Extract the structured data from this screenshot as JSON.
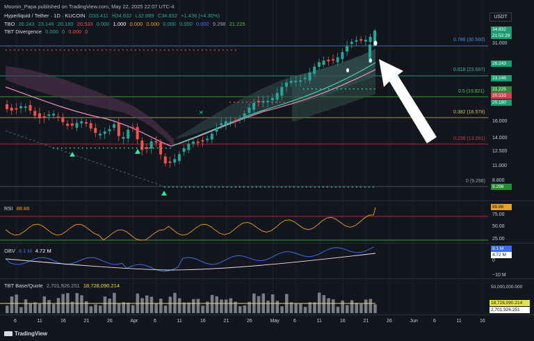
{
  "publisher": "Moonin_Papa published on TradingView.com, May 22, 2025 22:07 UTC-4",
  "symbol": {
    "name": "Hyperliquid / Tether · 1D · KUCOIN",
    "ohlc": [
      "O33.411",
      "H34.832",
      "L32.889",
      "C34.832",
      "+1.436 (+4.30%)"
    ]
  },
  "tbo": {
    "label": "TBO",
    "values": [
      "26.243",
      "23.146",
      "20.180",
      "20.533",
      "0.000",
      "1.000",
      "0.000",
      "0.000",
      "0.000",
      "0.000",
      "0.000",
      "9.298",
      "21.225"
    ]
  },
  "tbt_div": {
    "label": "TBT Divergence",
    "values": [
      "0.000",
      "0",
      "0.000",
      "0"
    ]
  },
  "currency": "USDT",
  "last_price": "34.832",
  "countdown": "21:52:29",
  "price_axis": [
    "31.000",
    "14.000",
    "12.500",
    "11.000",
    "8.800",
    "16.000"
  ],
  "price_tags": [
    {
      "text": "26.243",
      "color": "#1f9c72"
    },
    {
      "text": "23.146",
      "color": "#1f9c72"
    },
    {
      "text": "21.225",
      "color": "#2a8a3b"
    },
    {
      "text": "20.533",
      "color": "#d93b51"
    },
    {
      "text": "20.180",
      "color": "#1f9c72"
    },
    {
      "text": "9.298",
      "color": "#2a8a3b"
    }
  ],
  "fib_levels": [
    {
      "text": "0.786 (30.560)",
      "color": "#4a8fd8"
    },
    {
      "text": "0.618 (23.697)",
      "color": "#35b5a0"
    },
    {
      "text": "0.5 (19.821)",
      "color": "#4fc24a"
    },
    {
      "text": "0.382 (16.578)",
      "color": "#c8c84a"
    },
    {
      "text": "0.236 (13.291)",
      "color": "#d0384a"
    },
    {
      "text": "0 (9.298)",
      "color": "#9aa0ad"
    }
  ],
  "rsi": {
    "label": "RSI",
    "value": "88.86",
    "axis": [
      "75.00",
      "50.00",
      "25.00"
    ]
  },
  "obv": {
    "label": "OBV",
    "v1": "8.1 M",
    "v2": "4.72 M",
    "axis": [
      "8.1 M",
      "4.72 M",
      "0",
      "−10 M"
    ]
  },
  "tbt": {
    "label": "TBT Base/Quote",
    "v1": "2,701,926.251",
    "v2": "18,728,090.214",
    "axis_top": "50,000,000.000"
  },
  "time_axis": [
    "6",
    "11",
    "16",
    "21",
    "26",
    "Apr",
    "6",
    "11",
    "16",
    "21",
    "26",
    "May",
    "6",
    "11",
    "16",
    "21",
    "26",
    "Jun",
    "6",
    "11",
    "16"
  ],
  "brand": "TradingView",
  "colors": {
    "up": "#26a69a",
    "down": "#ef5350",
    "bg": "#14161e"
  }
}
